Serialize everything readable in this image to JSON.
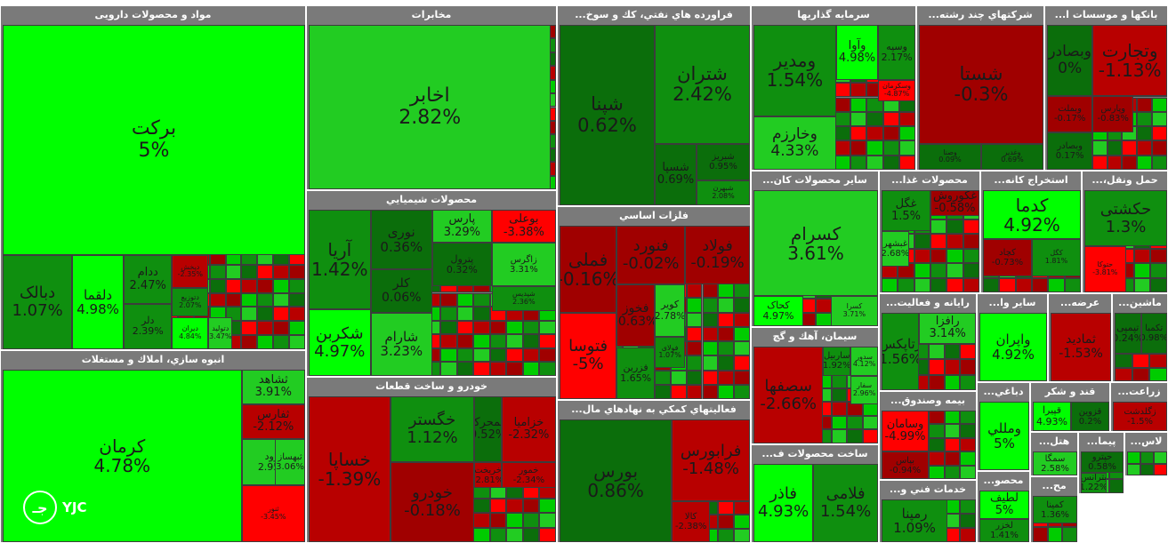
{
  "logo": {
    "mark": "جـ",
    "text": "YJC"
  },
  "colors": {
    "gain_strong": "#00ff00",
    "gain_mid": "#22cc22",
    "gain_low": "#0f8f0f",
    "flat": "#0b6e0b",
    "loss_low": "#a00000",
    "loss_mid": "#b80000",
    "loss_strong": "#ff0000"
  },
  "chart_data": {
    "type": "heatmap",
    "title": "",
    "value_unit": "%",
    "sectors": [
      {
        "name": "مواد و محصولات دارویی",
        "stocks": [
          {
            "name": "برکت",
            "change": 5
          },
          {
            "name": "دبالک",
            "change": 1.07
          },
          {
            "name": "دلقما",
            "change": 4.98
          },
          {
            "name": "ددام",
            "change": 2.47
          },
          {
            "name": "دلر",
            "change": 2.39
          },
          {
            "name": "دپخش",
            "change": -2.35
          },
          {
            "name": "دتوزیع",
            "change": 2.07
          },
          {
            "name": "دیران",
            "change": 4.84
          },
          {
            "name": "دتولید",
            "change": 3.47
          }
        ]
      },
      {
        "name": "مخابرات",
        "stocks": [
          {
            "name": "اخابر",
            "change": 2.82
          }
        ]
      },
      {
        "name": "فراورده هاي نفتي، كك و سوخ...",
        "stocks": [
          {
            "name": "شپنا",
            "change": 0.62
          },
          {
            "name": "شتران",
            "change": 2.42
          },
          {
            "name": "شسپا",
            "change": 0.69
          },
          {
            "name": "شبریز",
            "change": 0.95
          },
          {
            "name": "شبهرن",
            "change": 2.08
          }
        ]
      },
      {
        "name": "سرمايه گذاريها",
        "stocks": [
          {
            "name": "ومدیر",
            "change": 1.54
          },
          {
            "name": "وآوا",
            "change": 4.98
          },
          {
            "name": "وسپه",
            "change": 2.17
          },
          {
            "name": "وخارزم",
            "change": 4.33
          },
          {
            "name": "وسکرمان",
            "change": -4.87
          }
        ]
      },
      {
        "name": "شرکتهاي چند رشته...",
        "stocks": [
          {
            "name": "شستا",
            "change": -0.3
          },
          {
            "name": "وصنا",
            "change": 0.09
          },
          {
            "name": "وغدیر",
            "change": 0.69
          }
        ]
      },
      {
        "name": "بانکها و موسسات ا...",
        "stocks": [
          {
            "name": "وبصادر",
            "change": 0
          },
          {
            "name": "وتجارت",
            "change": -1.13
          },
          {
            "name": "وبملت",
            "change": -0.17
          },
          {
            "name": "وپارس",
            "change": -0.83
          },
          {
            "name": "وبصادر",
            "change": 0.17
          }
        ]
      },
      {
        "name": "محصولات شيميايي",
        "stocks": [
          {
            "name": "آریا",
            "change": 1.42
          },
          {
            "name": "نوری",
            "change": 0.36
          },
          {
            "name": "پارس",
            "change": 3.29
          },
          {
            "name": "بوعلی",
            "change": -3.38
          },
          {
            "name": "پترول",
            "change": 0.32
          },
          {
            "name": "زاگرس",
            "change": 3.31
          },
          {
            "name": "کلر",
            "change": 0.06
          },
          {
            "name": "شکربن",
            "change": 4.97
          },
          {
            "name": "شارام",
            "change": 3.23
          },
          {
            "name": "شپدیس",
            "change": 2.36
          }
        ]
      },
      {
        "name": "فلزات اساسي",
        "stocks": [
          {
            "name": "فملی",
            "change": -0.16
          },
          {
            "name": "فولاد",
            "change": -0.19
          },
          {
            "name": "فنورد",
            "change": -0.02
          },
          {
            "name": "فتوسا",
            "change": -5
          },
          {
            "name": "فخوز",
            "change": -0.63
          },
          {
            "name": "کویر",
            "change": 2.78
          },
          {
            "name": "فزرین",
            "change": 1.65
          },
          {
            "name": "فولای",
            "change": 1.07
          }
        ]
      },
      {
        "name": "ساير محصولات كان...",
        "stocks": [
          {
            "name": "کسرام",
            "change": 3.61
          },
          {
            "name": "کحاک",
            "change": 4.97
          },
          {
            "name": "کسرا",
            "change": 3.71
          }
        ]
      },
      {
        "name": "محصولات غذا...",
        "stocks": [
          {
            "name": "غگل",
            "change": 1.5
          },
          {
            "name": "غکوروش",
            "change": -0.58
          },
          {
            "name": "غبشهر",
            "change": 2.68
          }
        ]
      },
      {
        "name": "استخراج کانه...",
        "stocks": [
          {
            "name": "کدما",
            "change": 4.92
          },
          {
            "name": "کچاد",
            "change": -0.73
          },
          {
            "name": "کگل",
            "change": 1.81
          }
        ]
      },
      {
        "name": "حمل ونقل،...",
        "stocks": [
          {
            "name": "حکشتی",
            "change": 1.3
          },
          {
            "name": "حتوکا",
            "change": -3.81
          }
        ]
      },
      {
        "name": "انبوه سازي، املاك و مستغلات",
        "stocks": [
          {
            "name": "کرمان",
            "change": 4.78
          },
          {
            "name": "ثشاهد",
            "change": 3.91
          },
          {
            "name": "ثفارس",
            "change": -2.12
          },
          {
            "name": "ثرود",
            "change": 2.95
          },
          {
            "name": "ثبهساز",
            "change": 3.06
          },
          {
            "name": "ثنور",
            "change": -3.45
          }
        ]
      },
      {
        "name": "خودرو و ساخت قطعات",
        "stocks": [
          {
            "name": "خساپا",
            "change": -1.39
          },
          {
            "name": "خگستر",
            "change": 1.12
          },
          {
            "name": "خمحرکه",
            "change": 0.52
          },
          {
            "name": "خزامیا",
            "change": -2.32
          },
          {
            "name": "خودرو",
            "change": -0.18
          },
          {
            "name": "خریخت",
            "change": -2.81
          },
          {
            "name": "خمور",
            "change": -2.34
          }
        ]
      },
      {
        "name": "فعاليتهاي كمكي به نهادهاي مال...",
        "stocks": [
          {
            "name": "بورس",
            "change": 0.86
          },
          {
            "name": "فرابورس",
            "change": -1.48
          },
          {
            "name": "کالا",
            "change": -2.38
          }
        ]
      },
      {
        "name": "سيمان، آهك و گچ",
        "stocks": [
          {
            "name": "سصفها",
            "change": -2.66
          },
          {
            "name": "ساربیل",
            "change": 1.92
          },
          {
            "name": "سدور",
            "change": 4.12
          },
          {
            "name": "سفار",
            "change": 2.96
          }
        ]
      },
      {
        "name": "رايانه و فعاليت...",
        "stocks": [
          {
            "name": "رافزا",
            "change": 3.14
          },
          {
            "name": "رتاپکس",
            "change": 1.56
          }
        ]
      },
      {
        "name": "ساير وا...",
        "stocks": [
          {
            "name": "واپران",
            "change": 4.92
          }
        ]
      },
      {
        "name": "عرضه...",
        "stocks": [
          {
            "name": "ثمادید",
            "change": -1.53
          }
        ]
      },
      {
        "name": "ماشين...",
        "stocks": [
          {
            "name": "تپمپی",
            "change": 0.24
          },
          {
            "name": "تکمبا",
            "change": 0.98
          }
        ]
      },
      {
        "name": "ساخت محصولات ف...",
        "stocks": [
          {
            "name": "فاذر",
            "change": 4.93
          },
          {
            "name": "فلامی",
            "change": 1.54
          }
        ]
      },
      {
        "name": "بيمه وصندوق...",
        "stocks": [
          {
            "name": "وسامان",
            "change": -4.99
          },
          {
            "name": "بپاس",
            "change": -0.94
          }
        ]
      },
      {
        "name": "دباغي...",
        "stocks": [
          {
            "name": "ومللي",
            "change": 5
          }
        ]
      },
      {
        "name": "قند و شکر",
        "stocks": [
          {
            "name": "قپیرا",
            "change": 4.93
          },
          {
            "name": "قزوین",
            "change": 0.2
          }
        ]
      },
      {
        "name": "زراعت...",
        "stocks": [
          {
            "name": "زگلدشت",
            "change": -1.5
          }
        ]
      },
      {
        "name": "هتل...",
        "stocks": [
          {
            "name": "سمگا",
            "change": 2.58
          }
        ]
      },
      {
        "name": "پیما...",
        "stocks": [
          {
            "name": "حپترو",
            "change": 0.58
          },
          {
            "name": "بترانس",
            "change": 1.22
          }
        ]
      },
      {
        "name": "لاس...",
        "stocks": []
      },
      {
        "name": "خدمات فني و...",
        "stocks": [
          {
            "name": "رمپنا",
            "change": 1.09
          }
        ]
      },
      {
        "name": "محصو...",
        "stocks": [
          {
            "name": "لطیف",
            "change": 5
          },
          {
            "name": "لخزر",
            "change": 1.41
          }
        ]
      },
      {
        "name": "مح...",
        "stocks": [
          {
            "name": "کمینا",
            "change": 1.36
          }
        ]
      }
    ]
  }
}
